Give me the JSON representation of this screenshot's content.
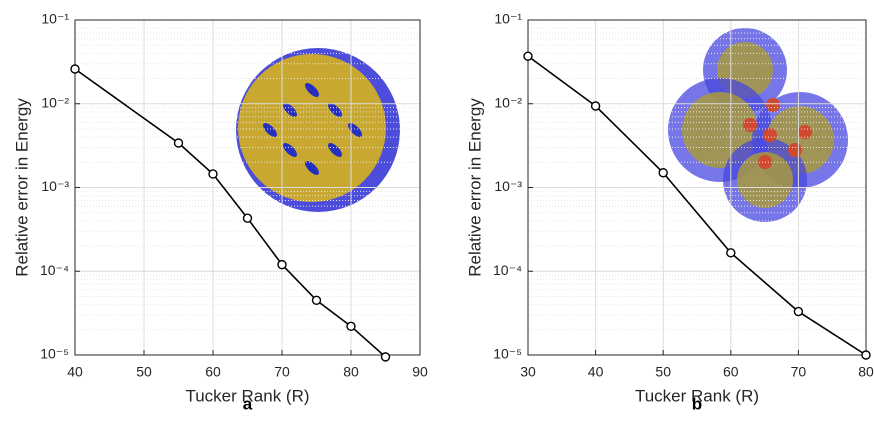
{
  "chart_data": [
    {
      "type": "line",
      "panel_label": "a",
      "xlabel": "Tucker Rank (R)",
      "ylabel": "Relative error in Energy",
      "x": [
        40,
        55,
        60,
        65,
        70,
        75,
        80,
        85
      ],
      "series": [
        {
          "color": "#000000",
          "values": [
            0.026,
            0.0034,
            0.00145,
            0.00043,
            0.00012,
            4.5e-05,
            2.2e-05,
            9.5e-06
          ]
        }
      ],
      "xlim": [
        40,
        90
      ],
      "xticks": [
        40,
        50,
        60,
        70,
        80,
        90
      ],
      "ylim": [
        1e-05,
        0.1
      ],
      "log_y": true,
      "grid": true,
      "yticks": [
        {
          "value": 1e-05,
          "label": "10⁻⁵"
        },
        {
          "value": 0.0001,
          "label": "10⁻⁴"
        },
        {
          "value": 0.001,
          "label": "10⁻³"
        },
        {
          "value": 0.01,
          "label": "10⁻²"
        },
        {
          "value": 0.1,
          "label": "10⁻¹"
        }
      ]
    },
    {
      "type": "line",
      "panel_label": "b",
      "xlabel": "Tucker Rank (R)",
      "ylabel": "Relative error in Energy",
      "x": [
        30,
        40,
        50,
        60,
        70,
        80
      ],
      "series": [
        {
          "color": "#000000",
          "values": [
            0.037,
            0.0094,
            0.0015,
            0.000166,
            3.3e-05,
            1e-05
          ]
        }
      ],
      "xlim": [
        30,
        80
      ],
      "xticks": [
        30,
        40,
        50,
        60,
        70,
        80
      ],
      "ylim": [
        1e-05,
        0.1
      ],
      "log_y": true,
      "grid": true,
      "yticks": [
        {
          "value": 1e-05,
          "label": "10⁻⁵"
        },
        {
          "value": 0.0001,
          "label": "10⁻⁴"
        },
        {
          "value": 0.001,
          "label": "10⁻³"
        },
        {
          "value": 0.01,
          "label": "10⁻²"
        },
        {
          "value": 0.1,
          "label": "10⁻¹"
        }
      ]
    }
  ]
}
